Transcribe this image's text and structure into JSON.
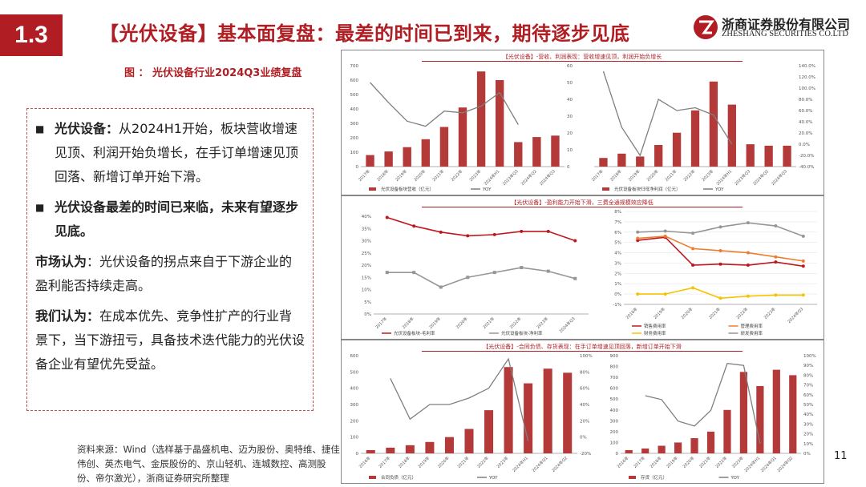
{
  "header": {
    "section_badge": "1.3",
    "title": "【光伏设备】基本面复盘：最差的时间已到来，期待逐步见底",
    "logo_name": "浙商证券股份有限公司",
    "logo_en": "ZHESHANG SECURITIES CO.LTD"
  },
  "figure_caption": "图 ： 光伏设备行业2024Q3业绩复盘",
  "content": {
    "bullet1_bold": "光伏设备：",
    "bullet1_text": "从2024H1开始，板块营收增速见顶、利润开始负增长，在手订单增速见顶回落、新增订单开始下滑。",
    "bullet2_bold": "光伏设备最差的时间已来临，未来有望逐步见底。",
    "para1_bold": "市场认为",
    "para1_text": "：光伏设备的拐点来自于下游企业的盈利能否持续走高。",
    "para2_bold": "我们认为：",
    "para2_text": "在成本优先、竞争性扩产的行业背景下，当下游扭亏，具备技术迭代能力的光伏设备企业有望优先受益。"
  },
  "source": "资料来源：Wind（选样基于晶盛机电、迈为股份、奥特维、捷佳伟创、英杰电气、金辰股份的、京山轻机、连城数控、高测股份、帝尔激光），浙商证券研究所整理",
  "page_number": "11",
  "panel_titles": {
    "top": "【光伏设备】-营收、利润表现：营收增速见顶，利润开始负增长",
    "mid": "【光伏设备】-盈利能力开始下滑，三费全通规模效应降低",
    "bot": "【光伏设备】-合同负债、存货表现：在手订单增速见顶回落，新增订单开始下滑"
  },
  "colors": {
    "bar": "#b43a3a",
    "line": "#7f7f7f",
    "red": "#c0171d",
    "orange": "#ed7d31",
    "yellow": "#f5c400",
    "gray": "#969696"
  },
  "chart_data": [
    {
      "type": "bar",
      "id": "revenue",
      "categories": [
        "2017年",
        "2018年",
        "2019年",
        "2020年",
        "2021年",
        "2022年",
        "2023年",
        "2024年H1",
        "2023年Q3",
        "2024年Q2",
        "2024年Q3"
      ],
      "series": [
        {
          "name": "光伏设备板块营收（亿元）",
          "values": [
            80,
            105,
            135,
            190,
            275,
            410,
            660,
            600,
            170,
            205,
            215
          ]
        },
        {
          "name": "YOY",
          "axis": "right",
          "values": [
            50,
            38,
            27,
            24,
            33,
            32,
            36,
            44,
            25,
            null,
            null
          ]
        }
      ],
      "ylim": [
        0,
        700
      ],
      "y2lim": [
        0,
        60
      ],
      "yticks": [
        "0",
        "100",
        "200",
        "300",
        "400",
        "500",
        "600",
        "700"
      ],
      "y2ticks": [
        "0",
        "10",
        "20",
        "30",
        "40",
        "50",
        "60"
      ]
    },
    {
      "type": "bar",
      "id": "profit",
      "categories": [
        "2017年",
        "2018年",
        "2019年",
        "2020年",
        "2021年",
        "2022年",
        "2023年",
        "2024年H1",
        "2023年Q3",
        "2024年Q2",
        "2024年Q3"
      ],
      "series": [
        {
          "name": "光伏设备板块归母净利润（亿元）",
          "values": [
            12,
            18,
            14,
            30,
            47,
            78,
            118,
            86,
            31,
            29,
            29
          ]
        },
        {
          "name": "YOY",
          "axis": "right",
          "values": [
            130,
            30,
            -20,
            80,
            60,
            65,
            52,
            0,
            null,
            null,
            null
          ]
        }
      ],
      "ylim": [
        0,
        140
      ],
      "y2lim": [
        -40,
        140
      ],
      "y2ticks": [
        "-40.0%",
        "-20.0%",
        "0.0%",
        "20.0%",
        "40.0%",
        "60.0%",
        "80.0%",
        "100.0%",
        "120.0%",
        "140.0%"
      ]
    },
    {
      "type": "line",
      "id": "margin",
      "categories": [
        "2017年",
        "2018年",
        "2019年",
        "2020年",
        "2021年",
        "2022年",
        "2023年",
        "2024年Q3"
      ],
      "series": [
        {
          "name": "光伏设备板块-毛利率",
          "values": [
            39.5,
            36,
            33.5,
            32,
            32.5,
            33.8,
            33.8,
            30
          ]
        },
        {
          "name": "光伏设备板块-净利率",
          "values": [
            17,
            17,
            11,
            15,
            17,
            19,
            17.5,
            14.5
          ]
        }
      ],
      "ylim": [
        0,
        40
      ],
      "yticks": [
        "0%",
        "5%",
        "10%",
        "15%",
        "20%",
        "25%",
        "30%",
        "35%",
        "40%"
      ]
    },
    {
      "type": "line",
      "id": "expense",
      "categories": [
        "2018年",
        "2019年",
        "2020年",
        "2021年",
        "2022年",
        "2023年",
        "2024年Q3"
      ],
      "series": [
        {
          "name": "销售费用率",
          "values": [
            5.2,
            5.5,
            2.8,
            2.9,
            2.8,
            3.1,
            2.7
          ]
        },
        {
          "name": "管理费用率",
          "values": [
            5.4,
            5.6,
            4.4,
            4.2,
            4.0,
            3.6,
            3.2
          ]
        },
        {
          "name": "财务费用率",
          "values": [
            0,
            0,
            0.6,
            -0.4,
            -0.2,
            -0.1,
            -0.1
          ]
        },
        {
          "name": "研发费用率",
          "values": [
            6.0,
            6.1,
            5.9,
            6.5,
            6.9,
            6.6,
            5.6
          ]
        }
      ],
      "ylim": [
        -1,
        8
      ],
      "yticks": [
        "-1%",
        "0%",
        "1%",
        "2%",
        "3%",
        "4%",
        "5%",
        "6%",
        "7%",
        "8%"
      ]
    },
    {
      "type": "bar",
      "id": "contract",
      "categories": [
        "2016年",
        "2017年",
        "2018年",
        "2019年",
        "2020年",
        "2021年",
        "2022年",
        "2023年",
        "2024年H1",
        "2024年Q1",
        "2024年Q2"
      ],
      "series": [
        {
          "name": "合同负债（亿元）",
          "values": [
            20,
            35,
            50,
            70,
            100,
            150,
            265,
            530,
            430,
            520,
            495
          ]
        },
        {
          "name": "YOY",
          "axis": "right",
          "values": [
            null,
            72,
            22,
            40,
            40,
            48,
            60,
            96,
            -5,
            null,
            null
          ]
        }
      ],
      "ylim": [
        0,
        600
      ],
      "y2lim": [
        -20,
        100
      ],
      "yticks": [
        "0",
        "100",
        "200",
        "300",
        "400",
        "500",
        "600"
      ],
      "y2ticks": [
        "-20%",
        "0%",
        "20%",
        "40%",
        "60%",
        "80%",
        "100%"
      ]
    },
    {
      "type": "bar",
      "id": "inventory",
      "categories": [
        "2016年",
        "2017年",
        "2018年",
        "2019年",
        "2020年",
        "2021年",
        "2022年",
        "2023年",
        "2024年H1",
        "2024年Q1",
        "2024年Q2"
      ],
      "series": [
        {
          "name": "存货（亿元）",
          "values": [
            30,
            45,
            70,
            100,
            140,
            200,
            400,
            750,
            620,
            770,
            720
          ]
        },
        {
          "name": "YOY",
          "axis": "right",
          "values": [
            null,
            59,
            55,
            33,
            28,
            44,
            92,
            90,
            10,
            null,
            null
          ]
        }
      ],
      "ylim": [
        0,
        900
      ],
      "y2lim": [
        0,
        100
      ],
      "yticks": [
        "0",
        "100",
        "200",
        "300",
        "400",
        "500",
        "600",
        "700",
        "800",
        "900"
      ],
      "y2ticks": [
        "0%",
        "10%",
        "20%",
        "30%",
        "40%",
        "50%",
        "60%",
        "70%",
        "80%",
        "90%",
        "100%"
      ]
    }
  ]
}
